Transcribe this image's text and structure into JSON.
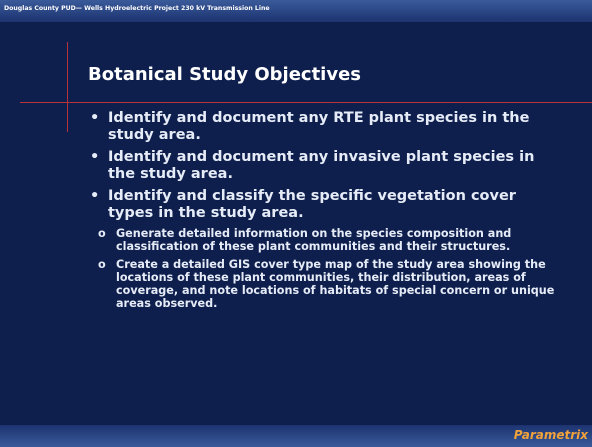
{
  "header": {
    "text": "Douglas County PUD— Wells Hydroelectric Project 230 kV Transmission Line"
  },
  "title": "Botanical Study Objectives",
  "bullets": [
    {
      "text": "Identify and document any RTE plant species in the study area.",
      "subitems": []
    },
    {
      "text": "Identify and document any invasive plant species in the study area.",
      "subitems": []
    },
    {
      "text": "Identify and classify the specific vegetation cover types in the study area.",
      "subitems": [
        "Generate detailed information on the species composition and classification of these plant communities and their structures.",
        "Create a detailed GIS cover type map of the study area showing the locations of these plant communities, their distribution, areas of coverage, and note locations of habitats of special concern or unique areas observed."
      ]
    }
  ],
  "footer": {
    "logo": "Parametrix"
  }
}
